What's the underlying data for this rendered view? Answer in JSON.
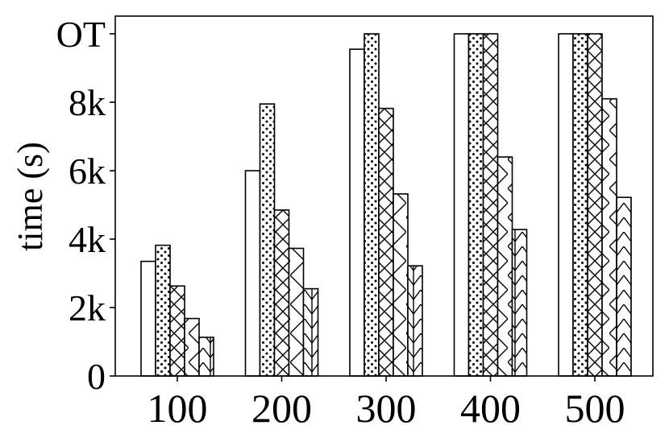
{
  "chart_data": {
    "type": "bar",
    "title": "",
    "xlabel": "",
    "ylabel": "time (s)",
    "categories": [
      "100",
      "200",
      "300",
      "400",
      "500"
    ],
    "ylim": [
      0,
      10000
    ],
    "yticks": [
      {
        "value": 0,
        "label": "0"
      },
      {
        "value": 2000,
        "label": "2k"
      },
      {
        "value": 4000,
        "label": "4k"
      },
      {
        "value": 6000,
        "label": "6k"
      },
      {
        "value": 8000,
        "label": "8k"
      },
      {
        "value": 10000,
        "label": "OT"
      }
    ],
    "legend": "none",
    "grid": false,
    "series": [
      {
        "pattern": "plain",
        "values": [
          3350,
          6000,
          9550,
          10000,
          10000
        ]
      },
      {
        "pattern": "dots",
        "values": [
          3820,
          7950,
          10000,
          10000,
          10000
        ]
      },
      {
        "pattern": "crosshatch",
        "values": [
          2630,
          4850,
          7820,
          10000,
          10000
        ]
      },
      {
        "pattern": "diagonal-x",
        "values": [
          1680,
          3730,
          5320,
          6400,
          8100
        ]
      },
      {
        "pattern": "chevron",
        "values": [
          1130,
          2550,
          3220,
          4280,
          5220
        ]
      }
    ]
  }
}
